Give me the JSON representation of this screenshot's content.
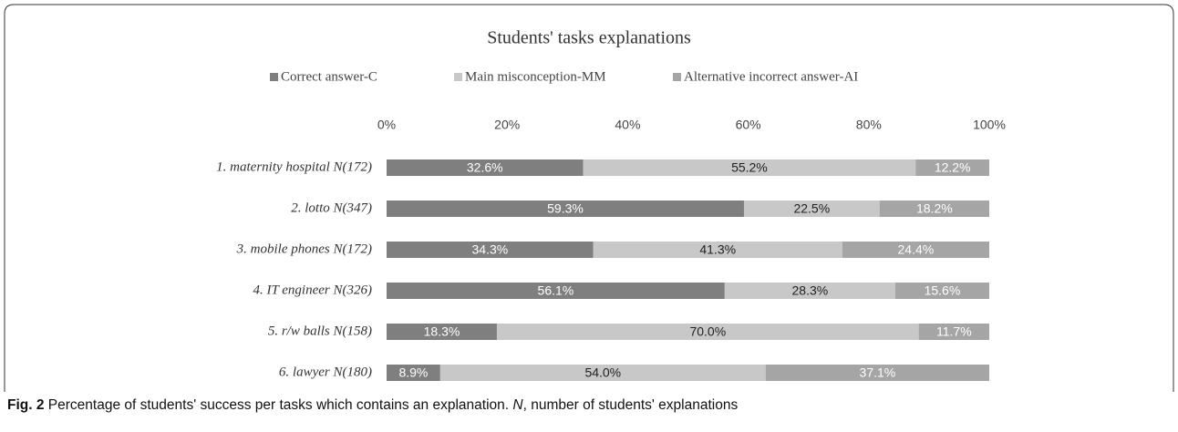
{
  "chart_data": {
    "type": "stacked-barh",
    "title": "Students' tasks explanations",
    "categories": [
      "1. maternity hospital N(172)",
      "2. lotto N(347)",
      "3. mobile phones N(172)",
      "4. IT engineer N(326)",
      "5. r/w balls N(158)",
      "6. lawyer N(180)"
    ],
    "series": [
      {
        "name": "Correct answer-C",
        "color": "#7f7f7f",
        "values": [
          32.6,
          59.3,
          34.3,
          56.1,
          18.3,
          8.9
        ],
        "value_labels": [
          "32.6%",
          "59.3%",
          "34.3%",
          "56.1%",
          "18.3%",
          "8.9%"
        ]
      },
      {
        "name": "Main misconception-MM",
        "color": "#c8c8c8",
        "values": [
          55.2,
          22.5,
          41.3,
          28.3,
          70.0,
          54.0
        ],
        "value_labels": [
          "55.2%",
          "22.5%",
          "41.3%",
          "28.3%",
          "70.0%",
          "54.0%"
        ]
      },
      {
        "name": "Alternative incorrect answer-AI",
        "color": "#a5a5a5",
        "values": [
          12.2,
          18.2,
          24.4,
          15.6,
          11.7,
          37.1
        ],
        "value_labels": [
          "12.2%",
          "18.2%",
          "24.4%",
          "15.6%",
          "11.7%",
          "37.1%"
        ]
      }
    ],
    "xlim": [
      0,
      100
    ],
    "xticks": [
      {
        "value": 0,
        "label": "0%"
      },
      {
        "value": 20,
        "label": "20%"
      },
      {
        "value": 40,
        "label": "40%"
      },
      {
        "value": 60,
        "label": "60%"
      },
      {
        "value": 80,
        "label": "80%"
      },
      {
        "value": 100,
        "label": "100%"
      }
    ],
    "grid": false,
    "legend": "top"
  },
  "caption": {
    "label": "Fig. 2",
    "text": "Percentage of students' success per tasks which contains an explanation.",
    "term": "N",
    "rest": ", number of students' explanations"
  }
}
